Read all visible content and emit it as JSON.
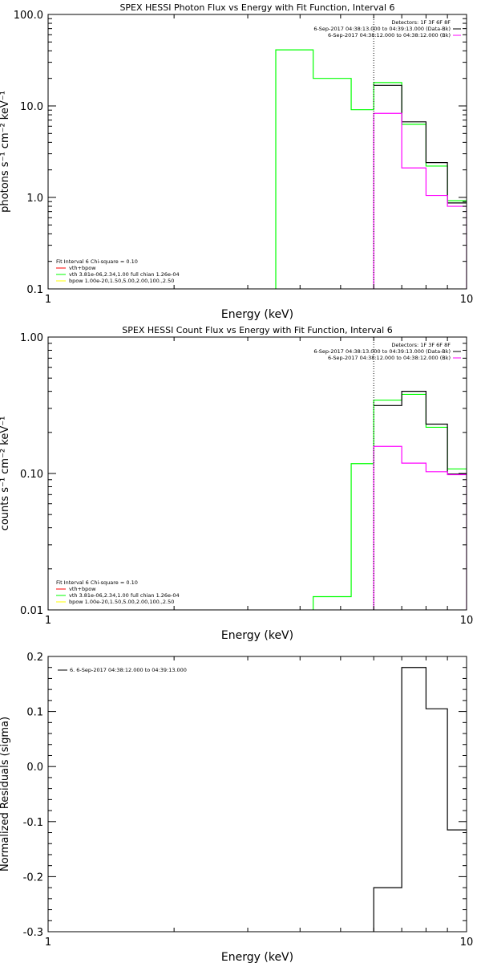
{
  "colors": {
    "background": "#ffffff",
    "axis": "#000000",
    "data": "#000000",
    "background_model": "#ff00ff",
    "total_fit": "#00ff00",
    "vth_component": "#ff0000",
    "bpow_component": "#ffff00"
  },
  "chart_data": [
    {
      "type": "line",
      "step": true,
      "title": "SPEX HESSI Photon Flux vs Energy with Fit Function, Interval 6",
      "xlabel": "Energy (keV)",
      "ylabel": "photons s⁻¹ cm⁻² keV⁻¹",
      "x_log": true,
      "y_log": true,
      "xlim": [
        1,
        10
      ],
      "ylim": [
        0.1,
        100
      ],
      "grid": false,
      "xticks": [
        {
          "v": 1,
          "label": "1"
        },
        {
          "v": 10,
          "label": "10"
        }
      ],
      "yticks": [
        {
          "v": 0.1,
          "label": "0.1"
        },
        {
          "v": 1,
          "label": "1.0"
        },
        {
          "v": 10,
          "label": "10.0"
        },
        {
          "v": 100,
          "label": "100.0"
        }
      ],
      "vline": 6.0,
      "legend_tr": {
        "detectors": "Detectors: 1F 3F 6F 8F",
        "entries": [
          {
            "text": "6-Sep-2017 04:38:13.000 to 04:39:13.000 (Data-Bk)",
            "color": "#000000"
          },
          {
            "text": "6-Sep-2017 04:38:12.000 to 04:38:12.000 (Bk)",
            "color": "#ff00ff"
          }
        ]
      },
      "legend_bl": {
        "header": "Fit Interval 6   Chi-square = 0.10",
        "entries": [
          {
            "text": "vth+bpow",
            "color": "#ff0000"
          },
          {
            "text": "vth 3.81e-06,2.34,1.00  full chian 1.26e-04",
            "color": "#00ff00"
          },
          {
            "text": "bpow 1.00e-20,1.50,5.00,2.00,100.,2.50",
            "color": "#ffff00"
          }
        ]
      },
      "series": [
        {
          "role": "fit",
          "color": "#00ff00",
          "points": [
            [
              3.5,
              0.1
            ],
            [
              3.5,
              41
            ],
            [
              4.3,
              41
            ],
            [
              4.3,
              20
            ],
            [
              5.3,
              20
            ],
            [
              5.3,
              9.1
            ],
            [
              6.0,
              9.1
            ],
            [
              6.0,
              18
            ],
            [
              7.0,
              18
            ],
            [
              7.0,
              6.3
            ],
            [
              8.0,
              6.3
            ],
            [
              8.0,
              2.2
            ],
            [
              9.0,
              2.2
            ],
            [
              9.0,
              0.92
            ],
            [
              10.0,
              0.92
            ]
          ]
        },
        {
          "role": "data",
          "color": "#000000",
          "points": [
            [
              6.0,
              16.8
            ],
            [
              7.0,
              16.8
            ],
            [
              7.0,
              6.7
            ],
            [
              8.0,
              6.7
            ],
            [
              8.0,
              2.4
            ],
            [
              9.0,
              2.4
            ],
            [
              9.0,
              0.87
            ],
            [
              10.0,
              0.87
            ]
          ]
        },
        {
          "role": "background",
          "color": "#ff00ff",
          "points": [
            [
              6.0,
              0.1
            ],
            [
              6.0,
              8.3
            ],
            [
              7.0,
              8.3
            ],
            [
              7.0,
              2.1
            ],
            [
              8.0,
              2.1
            ],
            [
              8.0,
              1.05
            ],
            [
              9.0,
              1.05
            ],
            [
              9.0,
              0.8
            ],
            [
              10.0,
              0.8
            ],
            [
              10.0,
              0.1
            ]
          ]
        }
      ]
    },
    {
      "type": "line",
      "step": true,
      "title": "SPEX HESSI Count Flux vs Energy with Fit Function, Interval 6",
      "xlabel": "Energy (keV)",
      "ylabel": "counts s⁻¹ cm⁻² keV⁻¹",
      "x_log": true,
      "y_log": true,
      "xlim": [
        1,
        10
      ],
      "ylim": [
        0.01,
        1
      ],
      "grid": false,
      "xticks": [
        {
          "v": 1,
          "label": "1"
        },
        {
          "v": 10,
          "label": "10"
        }
      ],
      "yticks": [
        {
          "v": 0.01,
          "label": "0.01"
        },
        {
          "v": 0.1,
          "label": "0.10"
        },
        {
          "v": 1,
          "label": "1.00"
        }
      ],
      "vline": 6.0,
      "legend_tr": {
        "detectors": "Detectors: 1F 3F 6F 8F",
        "entries": [
          {
            "text": "6-Sep-2017 04:38:13.000 to 04:39:13.000 (Data-Bk)",
            "color": "#000000"
          },
          {
            "text": "6-Sep-2017 04:38:12.000 to 04:38:12.000 (Bk)",
            "color": "#ff00ff"
          }
        ]
      },
      "legend_bl": {
        "header": "Fit Interval 6   Chi-square = 0.10",
        "entries": [
          {
            "text": "vth+bpow",
            "color": "#ff0000"
          },
          {
            "text": "vth 3.81e-06,2.34,1.00  full chian 1.26e-04",
            "color": "#00ff00"
          },
          {
            "text": "bpow 1.00e-20,1.50,5.00,2.00,100.,2.50",
            "color": "#ffff00"
          }
        ]
      },
      "series": [
        {
          "role": "fit",
          "color": "#00ff00",
          "points": [
            [
              4.3,
              0.01
            ],
            [
              4.3,
              0.0125
            ],
            [
              5.3,
              0.0125
            ],
            [
              5.3,
              0.118
            ],
            [
              6.0,
              0.118
            ],
            [
              6.0,
              0.345
            ],
            [
              7.0,
              0.345
            ],
            [
              7.0,
              0.38
            ],
            [
              8.0,
              0.38
            ],
            [
              8.0,
              0.218
            ],
            [
              9.0,
              0.218
            ],
            [
              9.0,
              0.108
            ],
            [
              10.0,
              0.108
            ]
          ]
        },
        {
          "role": "data",
          "color": "#000000",
          "points": [
            [
              6.0,
              0.315
            ],
            [
              7.0,
              0.315
            ],
            [
              7.0,
              0.4
            ],
            [
              8.0,
              0.4
            ],
            [
              8.0,
              0.23
            ],
            [
              9.0,
              0.23
            ],
            [
              9.0,
              0.099
            ],
            [
              10.0,
              0.099
            ]
          ]
        },
        {
          "role": "background",
          "color": "#ff00ff",
          "points": [
            [
              6.0,
              0.01
            ],
            [
              6.0,
              0.158
            ],
            [
              7.0,
              0.158
            ],
            [
              7.0,
              0.119
            ],
            [
              8.0,
              0.119
            ],
            [
              8.0,
              0.103
            ],
            [
              9.0,
              0.103
            ],
            [
              9.0,
              0.098
            ],
            [
              10.0,
              0.098
            ],
            [
              10.0,
              0.01
            ]
          ]
        }
      ]
    },
    {
      "type": "line",
      "step": true,
      "xlabel": "Energy (keV)",
      "ylabel": "Normalized Residuals (sigma)",
      "x_log": true,
      "y_log": false,
      "xlim": [
        1,
        10
      ],
      "ylim": [
        -0.3,
        0.2
      ],
      "grid": false,
      "xticks": [
        {
          "v": 1,
          "label": "1"
        },
        {
          "v": 10,
          "label": "10"
        }
      ],
      "yticks": [
        {
          "v": -0.3,
          "label": "-0.3"
        },
        {
          "v": -0.2,
          "label": "-0.2"
        },
        {
          "v": -0.1,
          "label": "-0.1"
        },
        {
          "v": 0,
          "label": "0.0"
        },
        {
          "v": 0.1,
          "label": "0.1"
        },
        {
          "v": 0.2,
          "label": "0.2"
        }
      ],
      "legend_tl": {
        "entries": [
          {
            "text": "6.  6-Sep-2017 04:38:12.000 to 04:39:13.000",
            "color": "#000000"
          }
        ]
      },
      "series": [
        {
          "role": "residuals",
          "color": "#000000",
          "points": [
            [
              6.0,
              -0.3
            ],
            [
              6.0,
              -0.22
            ],
            [
              7.0,
              -0.22
            ],
            [
              7.0,
              0.18
            ],
            [
              8.0,
              0.18
            ],
            [
              8.0,
              0.105
            ],
            [
              9.0,
              0.105
            ],
            [
              9.0,
              -0.115
            ],
            [
              10.0,
              -0.115
            ]
          ]
        }
      ]
    }
  ]
}
